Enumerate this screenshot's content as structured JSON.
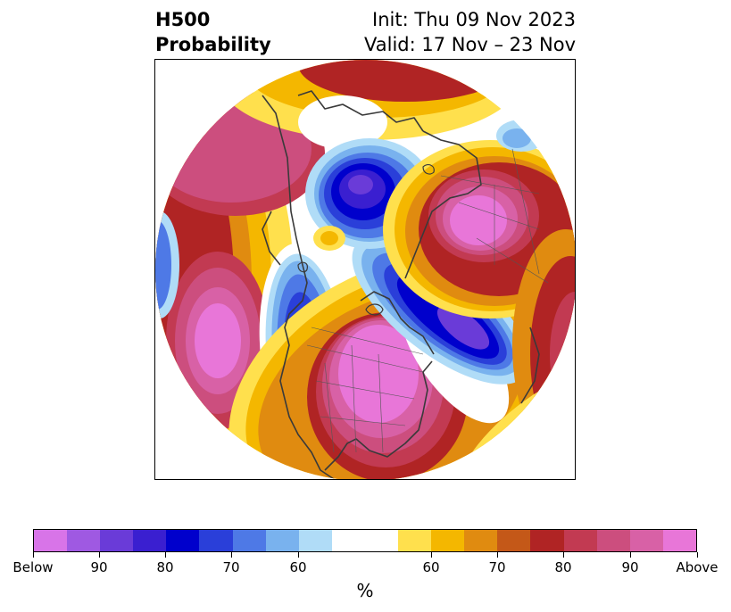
{
  "title": {
    "left_line1": "H500",
    "left_line2": "Probability",
    "right_line1": "Init: Thu 09 Nov 2023",
    "right_line2": "Valid: 17 Nov – 23 Nov"
  },
  "colorbar": {
    "colors": [
      "#d874e8",
      "#9f59e2",
      "#6a3bd8",
      "#3a1fd0",
      "#0000cc",
      "#2a3fd9",
      "#4e79e6",
      "#79b2ee",
      "#b0dcf7",
      "#ffffff",
      "#ffe04d",
      "#f4b700",
      "#e08b10",
      "#c45818",
      "#b02424",
      "#c23a52",
      "#cc4e7e",
      "#d861a6",
      "#e876d8"
    ],
    "tick_labels": [
      "Below",
      "90",
      "80",
      "70",
      "60",
      "60",
      "70",
      "80",
      "90",
      "Above"
    ],
    "unit": "%"
  }
}
